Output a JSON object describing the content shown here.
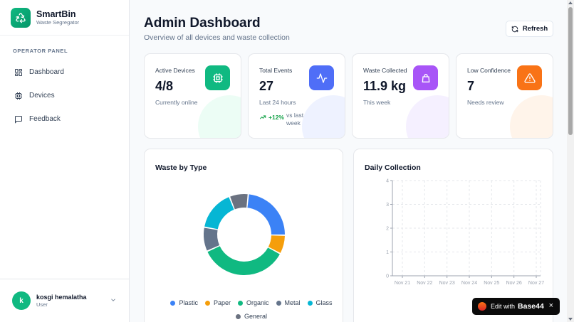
{
  "app": {
    "name": "SmartBin",
    "subtitle": "Waste Segregator"
  },
  "sidebar": {
    "section_label": "OPERATOR PANEL",
    "items": [
      {
        "label": "Dashboard",
        "icon": "dashboard-icon"
      },
      {
        "label": "Devices",
        "icon": "chip-icon"
      },
      {
        "label": "Feedback",
        "icon": "message-icon"
      }
    ]
  },
  "user": {
    "initial": "k",
    "name": "kosgi hemalatha",
    "role": "User"
  },
  "header": {
    "title": "Admin Dashboard",
    "subtitle": "Overview of all devices and waste collection",
    "refresh_label": "Refresh"
  },
  "stats": [
    {
      "label": "Active Devices",
      "value": "4/8",
      "sub": "Currently online",
      "icon": "chip-icon",
      "color": "#10b981"
    },
    {
      "label": "Total Events",
      "value": "27",
      "sub": "Last 24 hours",
      "trend": "+12%",
      "trend_text": "vs last week",
      "icon": "activity-icon",
      "color": "#4f6ef7"
    },
    {
      "label": "Waste Collected",
      "value": "11.9 kg",
      "sub": "This week",
      "icon": "bag-icon",
      "color": "#a855f7"
    },
    {
      "label": "Low Confidence",
      "value": "7",
      "sub": "Needs review",
      "icon": "alert-icon",
      "color": "#f97316"
    }
  ],
  "waste_panel": {
    "title": "Waste by Type"
  },
  "daily_panel": {
    "title": "Daily Collection"
  },
  "chart_data": [
    {
      "type": "pie",
      "title": "Waste by Type",
      "categories": [
        "Plastic",
        "Paper",
        "Organic",
        "Metal",
        "Glass",
        "General"
      ],
      "values": [
        22,
        7,
        33,
        9,
        15,
        7
      ],
      "colors": [
        "#3b82f6",
        "#f59e0b",
        "#10b981",
        "#64748b",
        "#06b6d4",
        "#6b7280"
      ],
      "legend": "bottom"
    },
    {
      "type": "line",
      "title": "Daily Collection",
      "x": [
        "Nov 21",
        "Nov 22",
        "Nov 23",
        "Nov 24",
        "Nov 25",
        "Nov 26",
        "Nov 27"
      ],
      "series": [],
      "ylim": [
        0,
        4
      ],
      "yticks": [
        0,
        1,
        2,
        3,
        4
      ],
      "grid": true
    }
  ],
  "badge": {
    "text": "Edit with",
    "brand": "Base44",
    "close": "×"
  }
}
